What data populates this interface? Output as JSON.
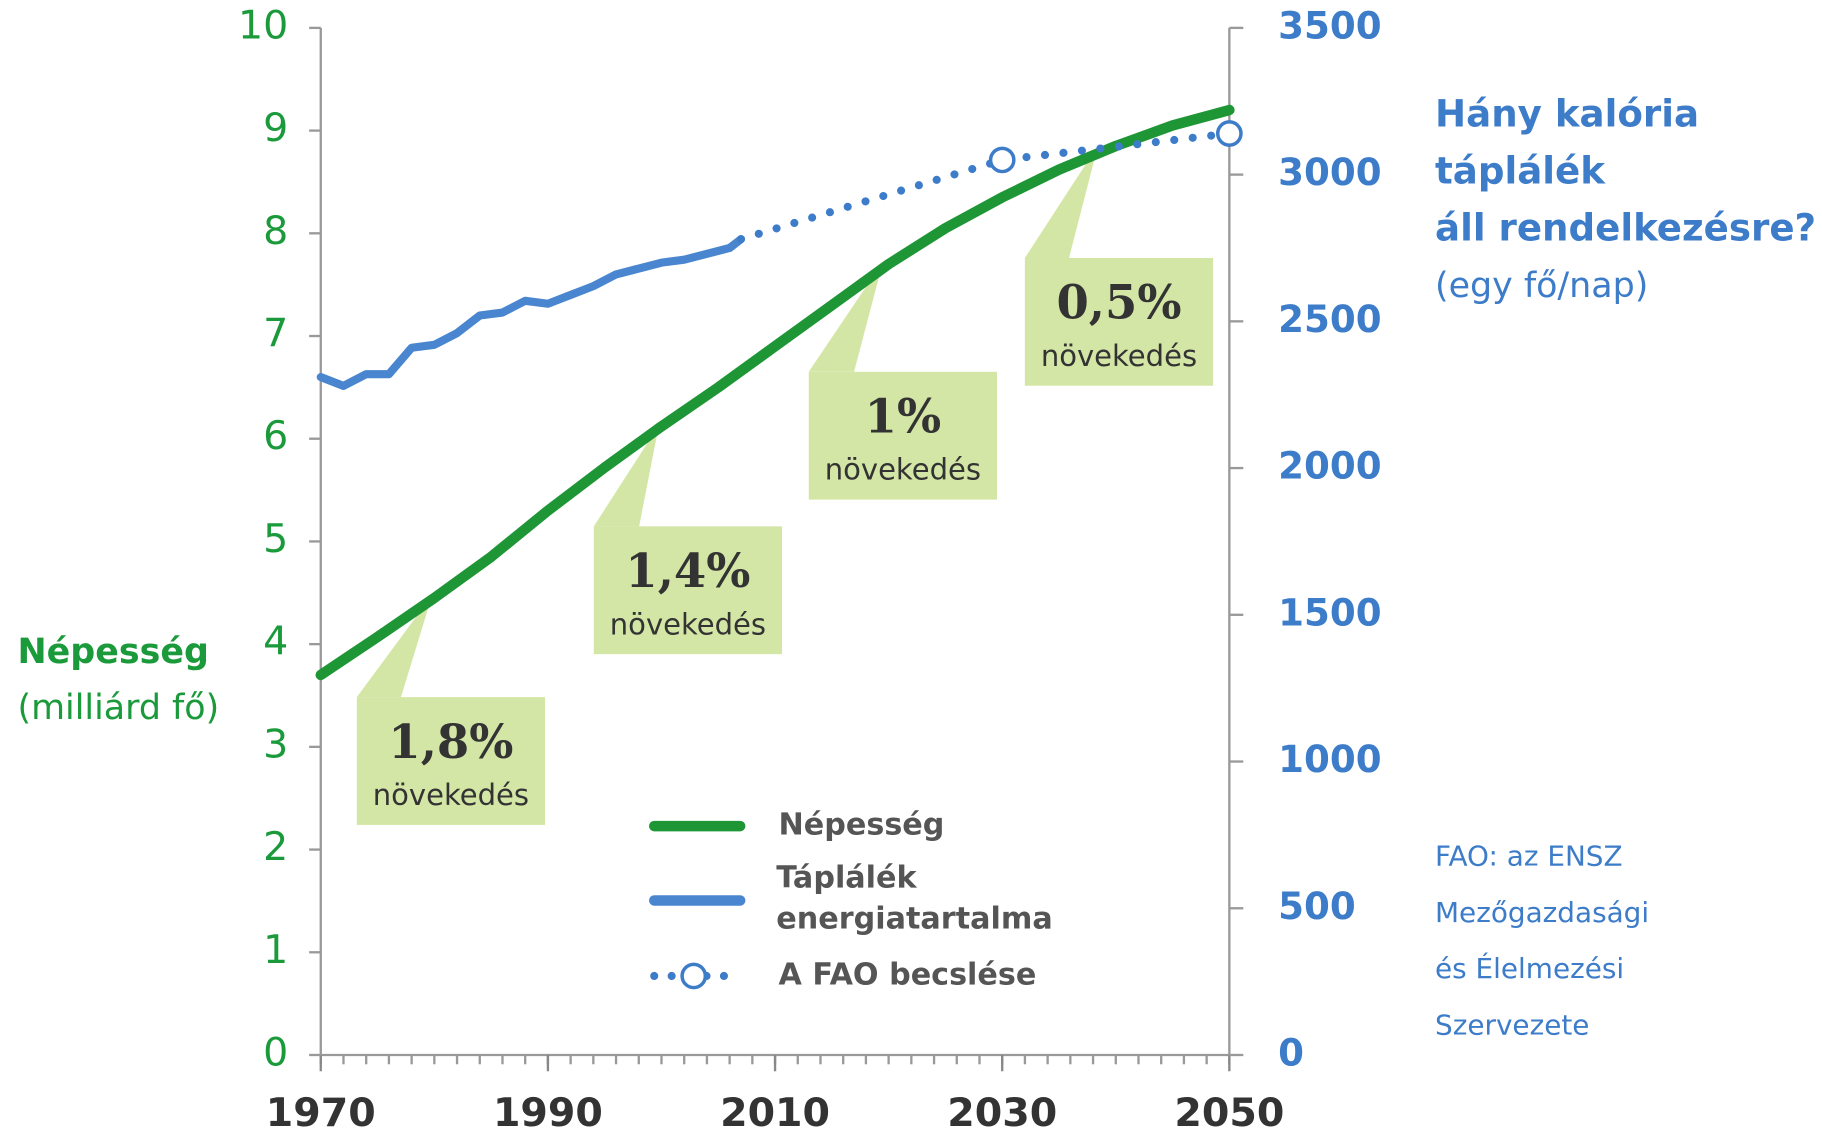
{
  "chart_data": {
    "type": "line",
    "xlim": [
      1970,
      2050
    ],
    "xticks": [
      1970,
      1990,
      2010,
      2030,
      2050
    ],
    "ylim": [
      0,
      10
    ],
    "yticks": [
      0,
      1,
      2,
      3,
      4,
      5,
      6,
      7,
      8,
      9,
      10
    ],
    "y2lim": [
      0,
      3500
    ],
    "y2ticks": [
      0,
      500,
      1000,
      1500,
      2000,
      2500,
      3000,
      3500
    ],
    "y_label": [
      "Népesség",
      "(milliárd fő)"
    ],
    "y2_label": [
      "Hány kalória",
      "táplálék",
      "áll rendelkezésre?",
      "(egy fő/nap)"
    ],
    "note": [
      "FAO: az ENSZ",
      "Mezőgazdasági",
      "és Élelmezési",
      "Szervezete"
    ],
    "series": [
      {
        "name": "Népesség",
        "color": "#1e9636",
        "axis": "y",
        "x": [
          1970,
          1975,
          1980,
          1985,
          1990,
          1995,
          2000,
          2005,
          2010,
          2015,
          2020,
          2025,
          2030,
          2035,
          2040,
          2045,
          2050
        ],
        "values": [
          3.7,
          4.07,
          4.45,
          4.85,
          5.3,
          5.72,
          6.12,
          6.5,
          6.9,
          7.3,
          7.7,
          8.05,
          8.35,
          8.62,
          8.85,
          9.05,
          9.2
        ]
      },
      {
        "name": "Táplálék energiatartalma",
        "color": "#4a86d0",
        "axis": "y2",
        "x": [
          1970,
          1972,
          1974,
          1976,
          1978,
          1980,
          1982,
          1984,
          1986,
          1988,
          1990,
          1992,
          1994,
          1996,
          1998,
          2000,
          2002,
          2004,
          2006,
          2007
        ],
        "values": [
          2310,
          2280,
          2320,
          2320,
          2410,
          2420,
          2460,
          2520,
          2530,
          2570,
          2560,
          2590,
          2620,
          2660,
          2680,
          2700,
          2710,
          2730,
          2750,
          2780
        ]
      },
      {
        "name": "A FAO becslése",
        "color": "#3d7cc9",
        "axis": "y2",
        "style": "dotted",
        "x": [
          2007,
          2030,
          2050
        ],
        "values": [
          2780,
          3050,
          3140
        ]
      }
    ],
    "annotations": [
      {
        "text": "1,8%",
        "label": "növekedés"
      },
      {
        "text": "1,4%",
        "label": "növekedés"
      },
      {
        "text": "1%",
        "label": "növekedés"
      },
      {
        "text": "0,5%",
        "label": "növekedés"
      }
    ]
  }
}
